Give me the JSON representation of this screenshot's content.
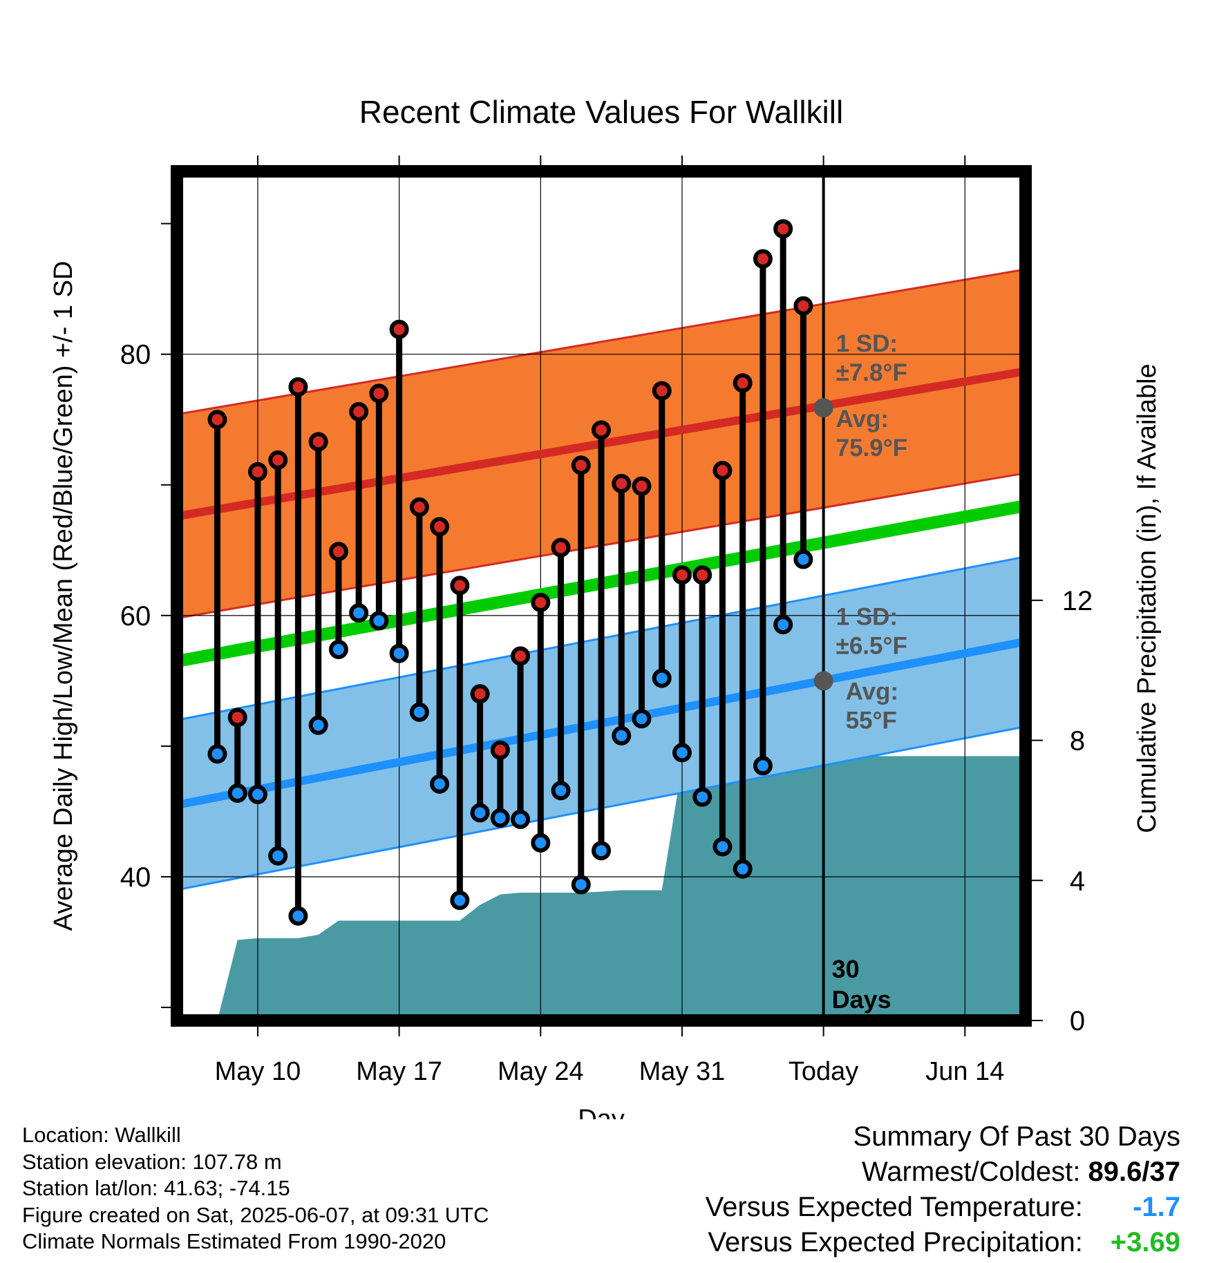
{
  "chart_data": {
    "type": "line",
    "title": "Recent Climate Values For Wallkill",
    "xlabel": "Day",
    "ylabel": "Average Daily High/Low/Mean (Red/Blue/Green) +/- 1 SD",
    "y2label": "Cumulative Precipitation (in), If Available",
    "x_range": [
      "2025-05-06",
      "2025-06-17"
    ],
    "ylim": [
      29,
      94
    ],
    "y_ticks": [
      40,
      60,
      80
    ],
    "y2lim": [
      0,
      24.25
    ],
    "y2_ticks": [
      0,
      4,
      8,
      12
    ],
    "x_ticks": [
      {
        "date": "2025-05-10",
        "label": "May 10"
      },
      {
        "date": "2025-05-17",
        "label": "May 17"
      },
      {
        "date": "2025-05-24",
        "label": "May 24"
      },
      {
        "date": "2025-05-31",
        "label": "May 31"
      },
      {
        "date": "2025-06-07",
        "label": "Today"
      },
      {
        "date": "2025-06-14",
        "label": "Jun 14"
      }
    ],
    "today": "2025-06-07",
    "today_label": "30 Days",
    "grid": true,
    "daily": {
      "dates": [
        "2025-05-08",
        "2025-05-09",
        "2025-05-10",
        "2025-05-11",
        "2025-05-12",
        "2025-05-13",
        "2025-05-14",
        "2025-05-15",
        "2025-05-16",
        "2025-05-17",
        "2025-05-18",
        "2025-05-19",
        "2025-05-20",
        "2025-05-21",
        "2025-05-22",
        "2025-05-23",
        "2025-05-24",
        "2025-05-25",
        "2025-05-26",
        "2025-05-27",
        "2025-05-28",
        "2025-05-29",
        "2025-05-30",
        "2025-05-31",
        "2025-06-01",
        "2025-06-02",
        "2025-06-03",
        "2025-06-04",
        "2025-06-05",
        "2025-06-06"
      ],
      "high": [
        75.0,
        52.2,
        71.0,
        71.9,
        77.5,
        73.3,
        64.9,
        75.6,
        77.0,
        81.9,
        68.3,
        66.8,
        62.3,
        54.0,
        49.7,
        56.9,
        61.0,
        65.2,
        71.5,
        74.2,
        70.1,
        69.9,
        77.2,
        63.1,
        63.1,
        71.1,
        77.8,
        87.3,
        89.6,
        83.7
      ],
      "low": [
        49.4,
        46.4,
        46.3,
        41.6,
        37.0,
        51.6,
        57.4,
        60.2,
        59.6,
        57.1,
        52.6,
        47.1,
        38.2,
        44.9,
        44.5,
        44.4,
        42.6,
        46.6,
        39.4,
        42.0,
        50.8,
        52.1,
        55.2,
        49.5,
        46.1,
        42.3,
        40.6,
        48.5,
        59.3,
        64.3
      ]
    },
    "normals": {
      "high": {
        "start": 67.6,
        "end": 78.7,
        "sd": 7.8
      },
      "low": {
        "start": 45.5,
        "end": 58.0,
        "sd": 6.5
      },
      "mean": {
        "start": 56.5,
        "end": 68.4
      }
    },
    "precip_cumulative": {
      "dates": [
        "2025-05-08",
        "2025-05-09",
        "2025-05-10",
        "2025-05-11",
        "2025-05-12",
        "2025-05-13",
        "2025-05-14",
        "2025-05-15",
        "2025-05-16",
        "2025-05-17",
        "2025-05-18",
        "2025-05-19",
        "2025-05-20",
        "2025-05-21",
        "2025-05-22",
        "2025-05-23",
        "2025-05-24",
        "2025-05-25",
        "2025-05-26",
        "2025-05-27",
        "2025-05-28",
        "2025-05-29",
        "2025-05-30",
        "2025-05-31",
        "2025-06-01",
        "2025-06-02",
        "2025-06-03",
        "2025-06-04",
        "2025-06-05",
        "2025-06-06",
        "2025-06-07"
      ],
      "values": [
        0,
        2.3,
        2.35,
        2.35,
        2.35,
        2.45,
        2.85,
        2.85,
        2.85,
        2.85,
        2.85,
        2.85,
        2.85,
        3.3,
        3.6,
        3.65,
        3.65,
        3.65,
        3.65,
        3.68,
        3.72,
        3.72,
        3.72,
        7.3,
        7.3,
        7.3,
        7.35,
        7.35,
        7.35,
        7.55,
        7.55
      ]
    },
    "annotations": {
      "high": {
        "sd_label": "1 SD:",
        "sd_value": "±7.8°F",
        "avg_label": "Avg:",
        "avg_value": "75.9°F",
        "avg": 75.9
      },
      "low": {
        "sd_label": "1 SD:",
        "sd_value": "±6.5°F",
        "avg_label": "Avg:",
        "avg_value": "55°F",
        "avg": 55.0
      }
    },
    "colors": {
      "high_band": "#f47a30",
      "high_line": "#d42a23",
      "low_band": "#82c0e8",
      "low_line": "#1e90ff",
      "mean_line": "#00cc00",
      "precip": "#4a9aa3",
      "high_marker": "#d42a23",
      "low_marker": "#1e90ff",
      "annotation_text": "#555555"
    }
  },
  "info": {
    "location": "Location: Wallkill",
    "elevation": "Station elevation: 107.78 m",
    "latlon": "Station lat/lon: 41.63; -74.15",
    "created": "Figure created on Sat, 2025-06-07, at 09:31 UTC",
    "normals": "Climate Normals Estimated From 1990-2020"
  },
  "summary": {
    "title": "Summary Of Past 30 Days",
    "warm_cold_label": "Warmest/Coldest:",
    "warm_cold_value": "89.6/37",
    "temp_label": "Versus Expected Temperature:",
    "temp_value": "-1.7",
    "temp_color": "#1e90ff",
    "precip_label": "Versus Expected Precipitation:",
    "precip_value": "+3.69",
    "precip_color": "#22bb22"
  }
}
